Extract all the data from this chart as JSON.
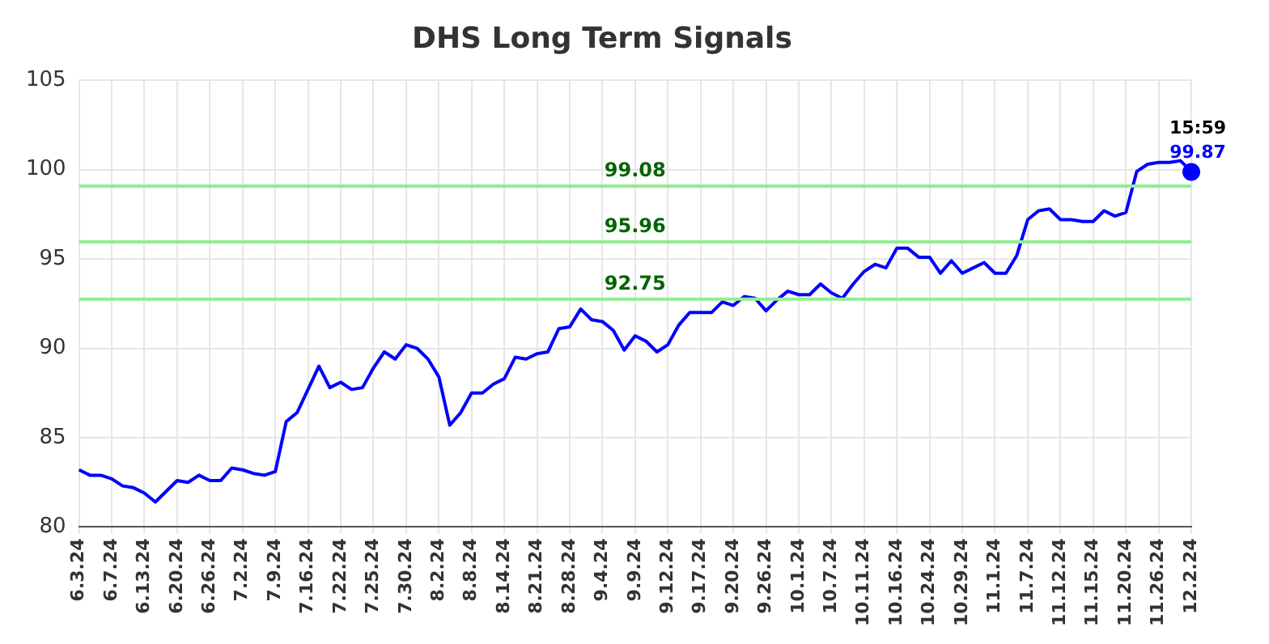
{
  "chart_data": {
    "type": "line",
    "title": "DHS Long Term Signals",
    "categories": [
      "6.3.24",
      null,
      null,
      "6.7.24",
      null,
      null,
      "6.13.24",
      null,
      null,
      "6.20.24",
      null,
      null,
      "6.26.24",
      null,
      null,
      "7.2.24",
      null,
      null,
      "7.9.24",
      null,
      null,
      "7.16.24",
      null,
      null,
      "7.22.24",
      null,
      null,
      "7.25.24",
      null,
      null,
      "7.30.24",
      null,
      null,
      "8.2.24",
      null,
      null,
      "8.8.24",
      null,
      null,
      "8.14.24",
      null,
      null,
      "8.21.24",
      null,
      null,
      "8.28.24",
      null,
      null,
      "9.4.24",
      null,
      null,
      "9.9.24",
      null,
      null,
      "9.12.24",
      null,
      null,
      "9.17.24",
      null,
      null,
      "9.20.24",
      null,
      null,
      "9.26.24",
      null,
      null,
      "10.1.24",
      null,
      null,
      "10.7.24",
      null,
      null,
      "10.11.24",
      null,
      null,
      "10.16.24",
      null,
      null,
      "10.24.24",
      null,
      null,
      "10.29.24",
      null,
      null,
      "11.1.24",
      null,
      null,
      "11.7.24",
      null,
      null,
      "11.12.24",
      null,
      null,
      "11.15.24",
      null,
      null,
      "11.20.24",
      null,
      null,
      "11.26.24",
      null,
      null,
      "12.2.24"
    ],
    "series": [
      {
        "color": "#0000ff",
        "values": [
          83.2,
          82.9,
          82.9,
          82.7,
          82.3,
          82.2,
          81.9,
          81.4,
          82.0,
          82.6,
          82.5,
          82.9,
          82.6,
          82.6,
          83.3,
          83.2,
          83.0,
          82.9,
          83.1,
          85.9,
          86.4,
          87.7,
          89.0,
          87.8,
          88.1,
          87.7,
          87.8,
          88.9,
          89.8,
          89.4,
          90.2,
          90.0,
          89.4,
          88.4,
          85.7,
          86.4,
          87.5,
          87.5,
          88.0,
          88.3,
          89.5,
          89.4,
          89.7,
          89.8,
          91.1,
          91.2,
          92.2,
          91.6,
          91.5,
          91.0,
          89.9,
          90.7,
          90.4,
          89.8,
          90.2,
          91.3,
          92.0,
          92.0,
          92.0,
          92.6,
          92.4,
          92.9,
          92.8,
          92.1,
          92.7,
          93.2,
          93.0,
          93.0,
          93.6,
          93.1,
          92.8,
          93.6,
          94.3,
          94.7,
          94.5,
          95.6,
          95.6,
          95.1,
          95.1,
          94.2,
          94.9,
          94.2,
          94.5,
          94.8,
          94.2,
          94.2,
          95.2,
          97.2,
          97.7,
          97.8,
          97.2,
          97.2,
          97.1,
          97.1,
          97.7,
          97.4,
          97.6,
          99.9,
          100.3,
          100.4,
          100.4,
          100.5,
          99.9
        ]
      },
      {
        "type": "scatter",
        "marker": "circle",
        "color": "#0000ff",
        "x": [
          "12.2.24"
        ],
        "values": [
          99.87
        ],
        "value_labels": [
          "99.87"
        ]
      }
    ],
    "ylim": [
      80,
      105
    ],
    "yticks": [
      80,
      85,
      90,
      95,
      100,
      105
    ],
    "grid": true,
    "legend": false,
    "marker": "none",
    "ref_lines": [
      {
        "axis": "y",
        "value": 99.08,
        "label": "99.08",
        "color": "#90ee90"
      },
      {
        "axis": "y",
        "value": 95.96,
        "label": "95.96",
        "color": "#90ee90"
      },
      {
        "axis": "y",
        "value": 92.75,
        "label": "92.75",
        "color": "#90ee90"
      }
    ],
    "annotations": [
      {
        "text": "15:59",
        "x": "12.2.24",
        "y": 99.87
      }
    ]
  }
}
